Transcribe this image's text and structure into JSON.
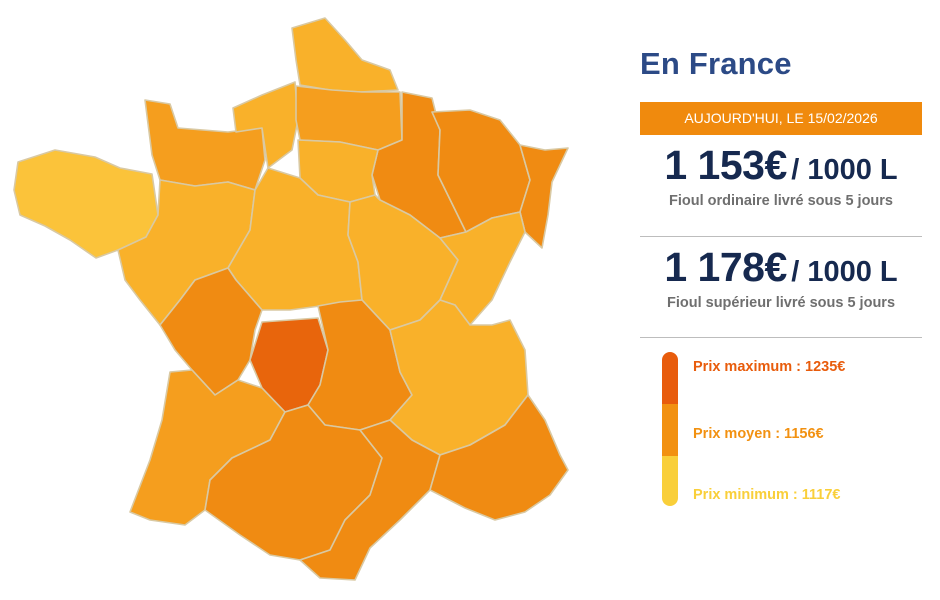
{
  "header": {
    "title": "En France"
  },
  "date_banner": "AUJOURD'HUI, LE 15/02/2026",
  "prices": [
    {
      "value": "1 153€",
      "unit": "/ 1000 L",
      "description": "Fioul ordinaire livré sous 5 jours"
    },
    {
      "value": "1 178€",
      "unit": "/ 1000 L",
      "description": "Fioul supérieur livré sous 5 jours"
    }
  ],
  "legend": {
    "max": {
      "label": "Prix maximum : 1235€",
      "color": "#e85c0c"
    },
    "avg": {
      "label": "Prix moyen : 1156€",
      "color": "#f29111"
    },
    "min": {
      "label": "Prix minimum : 1117€",
      "color": "#f9cf3a"
    }
  },
  "map": {
    "region_colors": {
      "light_yellow": "#fbc33a",
      "yellow_orange": "#f9b12a",
      "orange": "#f59e1e",
      "dark_orange": "#f08b12",
      "red_orange": "#e8650c"
    }
  }
}
